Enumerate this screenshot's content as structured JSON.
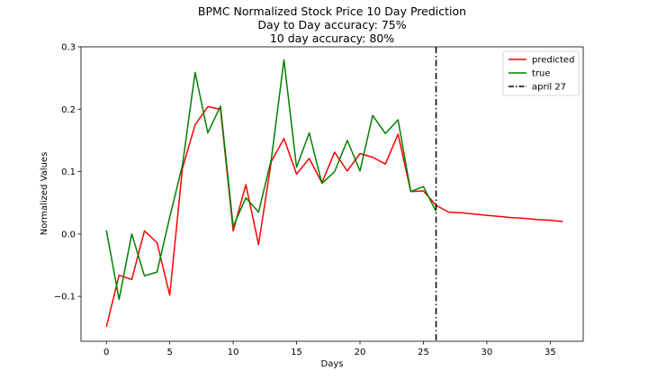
{
  "chart_data": {
    "type": "line",
    "title_lines": [
      "BPMC Normalized Stock Price 10 Day Prediction",
      "Day to Day accuracy: 75%",
      "10 day accuracy: 80%"
    ],
    "xlabel": "Days",
    "ylabel": "Normalized Values",
    "xlim": [
      -2,
      37.6
    ],
    "ylim": [
      -0.172,
      0.3
    ],
    "xticks": [
      0,
      5,
      10,
      15,
      20,
      25,
      30,
      35
    ],
    "yticks": [
      -0.1,
      0.0,
      0.1,
      0.2,
      0.3
    ],
    "grid": false,
    "legend_position": "top-right",
    "series": [
      {
        "name": "predicted",
        "color": "#ff0000",
        "x": [
          0,
          1,
          2,
          3,
          4,
          5,
          6,
          7,
          8,
          9,
          10,
          11,
          12,
          13,
          14,
          15,
          16,
          17,
          18,
          19,
          20,
          21,
          22,
          23,
          24,
          25,
          26,
          27,
          28,
          29,
          30,
          31,
          32,
          33,
          34,
          35,
          36
        ],
        "y": [
          -0.149,
          -0.066,
          -0.073,
          0.005,
          -0.014,
          -0.098,
          0.105,
          0.175,
          0.204,
          0.2,
          0.005,
          0.079,
          -0.017,
          0.116,
          0.153,
          0.096,
          0.121,
          0.082,
          0.131,
          0.101,
          0.129,
          0.123,
          0.112,
          0.16,
          0.068,
          0.069,
          0.046,
          0.035,
          0.034,
          0.032,
          0.03,
          0.028,
          0.026,
          0.025,
          0.023,
          0.022,
          0.02
        ]
      },
      {
        "name": "true",
        "color": "#008000",
        "x": [
          0,
          1,
          2,
          3,
          4,
          5,
          6,
          7,
          8,
          9,
          10,
          11,
          12,
          13,
          14,
          15,
          16,
          17,
          18,
          19,
          20,
          21,
          22,
          23,
          24,
          25,
          26
        ],
        "y": [
          0.006,
          -0.105,
          0.0,
          -0.067,
          -0.061,
          0.027,
          0.11,
          0.259,
          0.162,
          0.205,
          0.012,
          0.058,
          0.035,
          0.119,
          0.279,
          0.107,
          0.162,
          0.081,
          0.1,
          0.15,
          0.101,
          0.19,
          0.161,
          0.183,
          0.068,
          0.076,
          0.036
        ]
      }
    ],
    "vline": {
      "name": "april 27",
      "x": 26,
      "color": "#000000"
    }
  }
}
